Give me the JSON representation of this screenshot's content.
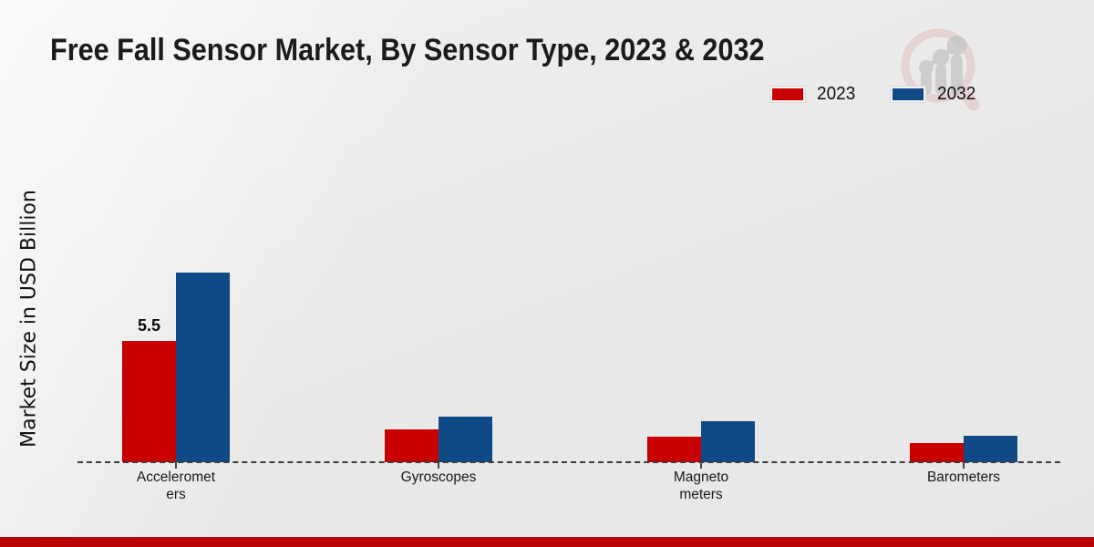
{
  "page": {
    "background_color": "#e9e9e9",
    "bottom_bar_color": "#b90202"
  },
  "watermark": {
    "description": "magnifier-growth-chart-logo",
    "ring_color": "#dfb9b9",
    "bars_color": "#c6c6c6"
  },
  "chart_data": {
    "type": "bar",
    "title": "Free Fall Sensor Market, By Sensor Type, 2023 & 2032",
    "ylabel": "Market Size in USD Billion",
    "xlabel": "",
    "categories": [
      "Accelerometers",
      "Gyroscopes",
      "Magnetometers",
      "Barometers"
    ],
    "tick_labels": [
      "Acceleromet\ners",
      "Gyroscopes",
      "Magneto\nmeters",
      "Barometers"
    ],
    "series": [
      {
        "name": "2023",
        "color": "#c80000",
        "values": [
          5.5,
          1.5,
          1.15,
          0.85
        ],
        "data_labels": [
          "5.5",
          "",
          "",
          ""
        ]
      },
      {
        "name": "2032",
        "color": "#0f4a87",
        "values": [
          8.6,
          2.05,
          1.85,
          1.2
        ],
        "data_labels": [
          "",
          "",
          "",
          ""
        ]
      }
    ],
    "ylim": [
      0,
      9
    ],
    "grid": false,
    "axis_style": "dashed-baseline-only",
    "legend_position": "top-right"
  }
}
